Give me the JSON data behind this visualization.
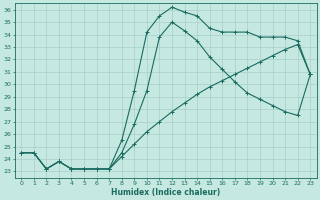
{
  "xlabel": "Humidex (Indice chaleur)",
  "bg_color": "#c5e8e0",
  "grid_color": "#a8cfc8",
  "line_color": "#1a6b60",
  "xlim": [
    -0.5,
    23.5
  ],
  "ylim": [
    22.5,
    36.5
  ],
  "xticks": [
    0,
    1,
    2,
    3,
    4,
    5,
    6,
    7,
    8,
    9,
    10,
    11,
    12,
    13,
    14,
    15,
    16,
    17,
    18,
    19,
    20,
    21,
    22,
    23
  ],
  "yticks": [
    23,
    24,
    25,
    26,
    27,
    28,
    29,
    30,
    31,
    32,
    33,
    34,
    35,
    36
  ],
  "curve_top": {
    "x": [
      0,
      1,
      2,
      3,
      4,
      5,
      6,
      7,
      8,
      9,
      10,
      11,
      12,
      13,
      14,
      15,
      16,
      17,
      18,
      19,
      20,
      21,
      22,
      23
    ],
    "y": [
      24.5,
      24.5,
      23.2,
      23.8,
      23.2,
      23.2,
      23.2,
      23.2,
      25.5,
      29.5,
      34.2,
      35.5,
      36.2,
      35.8,
      35.5,
      34.5,
      34.2,
      34.2,
      34.2,
      33.8,
      33.8,
      33.8,
      33.5,
      30.8
    ]
  },
  "curve_mid": {
    "x": [
      0,
      1,
      2,
      3,
      4,
      5,
      6,
      7,
      8,
      9,
      10,
      11,
      12,
      13,
      14,
      15,
      16,
      17,
      18,
      19,
      20,
      21,
      22,
      23
    ],
    "y": [
      24.5,
      24.5,
      23.2,
      23.8,
      23.2,
      23.2,
      23.2,
      23.2,
      24.5,
      26.8,
      29.5,
      33.8,
      35.0,
      34.3,
      33.5,
      32.2,
      31.2,
      30.2,
      29.3,
      28.8,
      28.3,
      27.8,
      27.5,
      30.8
    ]
  },
  "curve_bot": {
    "x": [
      0,
      1,
      2,
      3,
      4,
      5,
      6,
      7,
      8,
      9,
      10,
      11,
      12,
      13,
      14,
      15,
      16,
      17,
      18,
      19,
      20,
      21,
      22,
      23
    ],
    "y": [
      24.5,
      24.5,
      23.2,
      23.8,
      23.2,
      23.2,
      23.2,
      23.2,
      24.2,
      25.2,
      26.2,
      27.0,
      27.8,
      28.5,
      29.2,
      29.8,
      30.3,
      30.8,
      31.3,
      31.8,
      32.3,
      32.8,
      33.2,
      30.8
    ]
  }
}
